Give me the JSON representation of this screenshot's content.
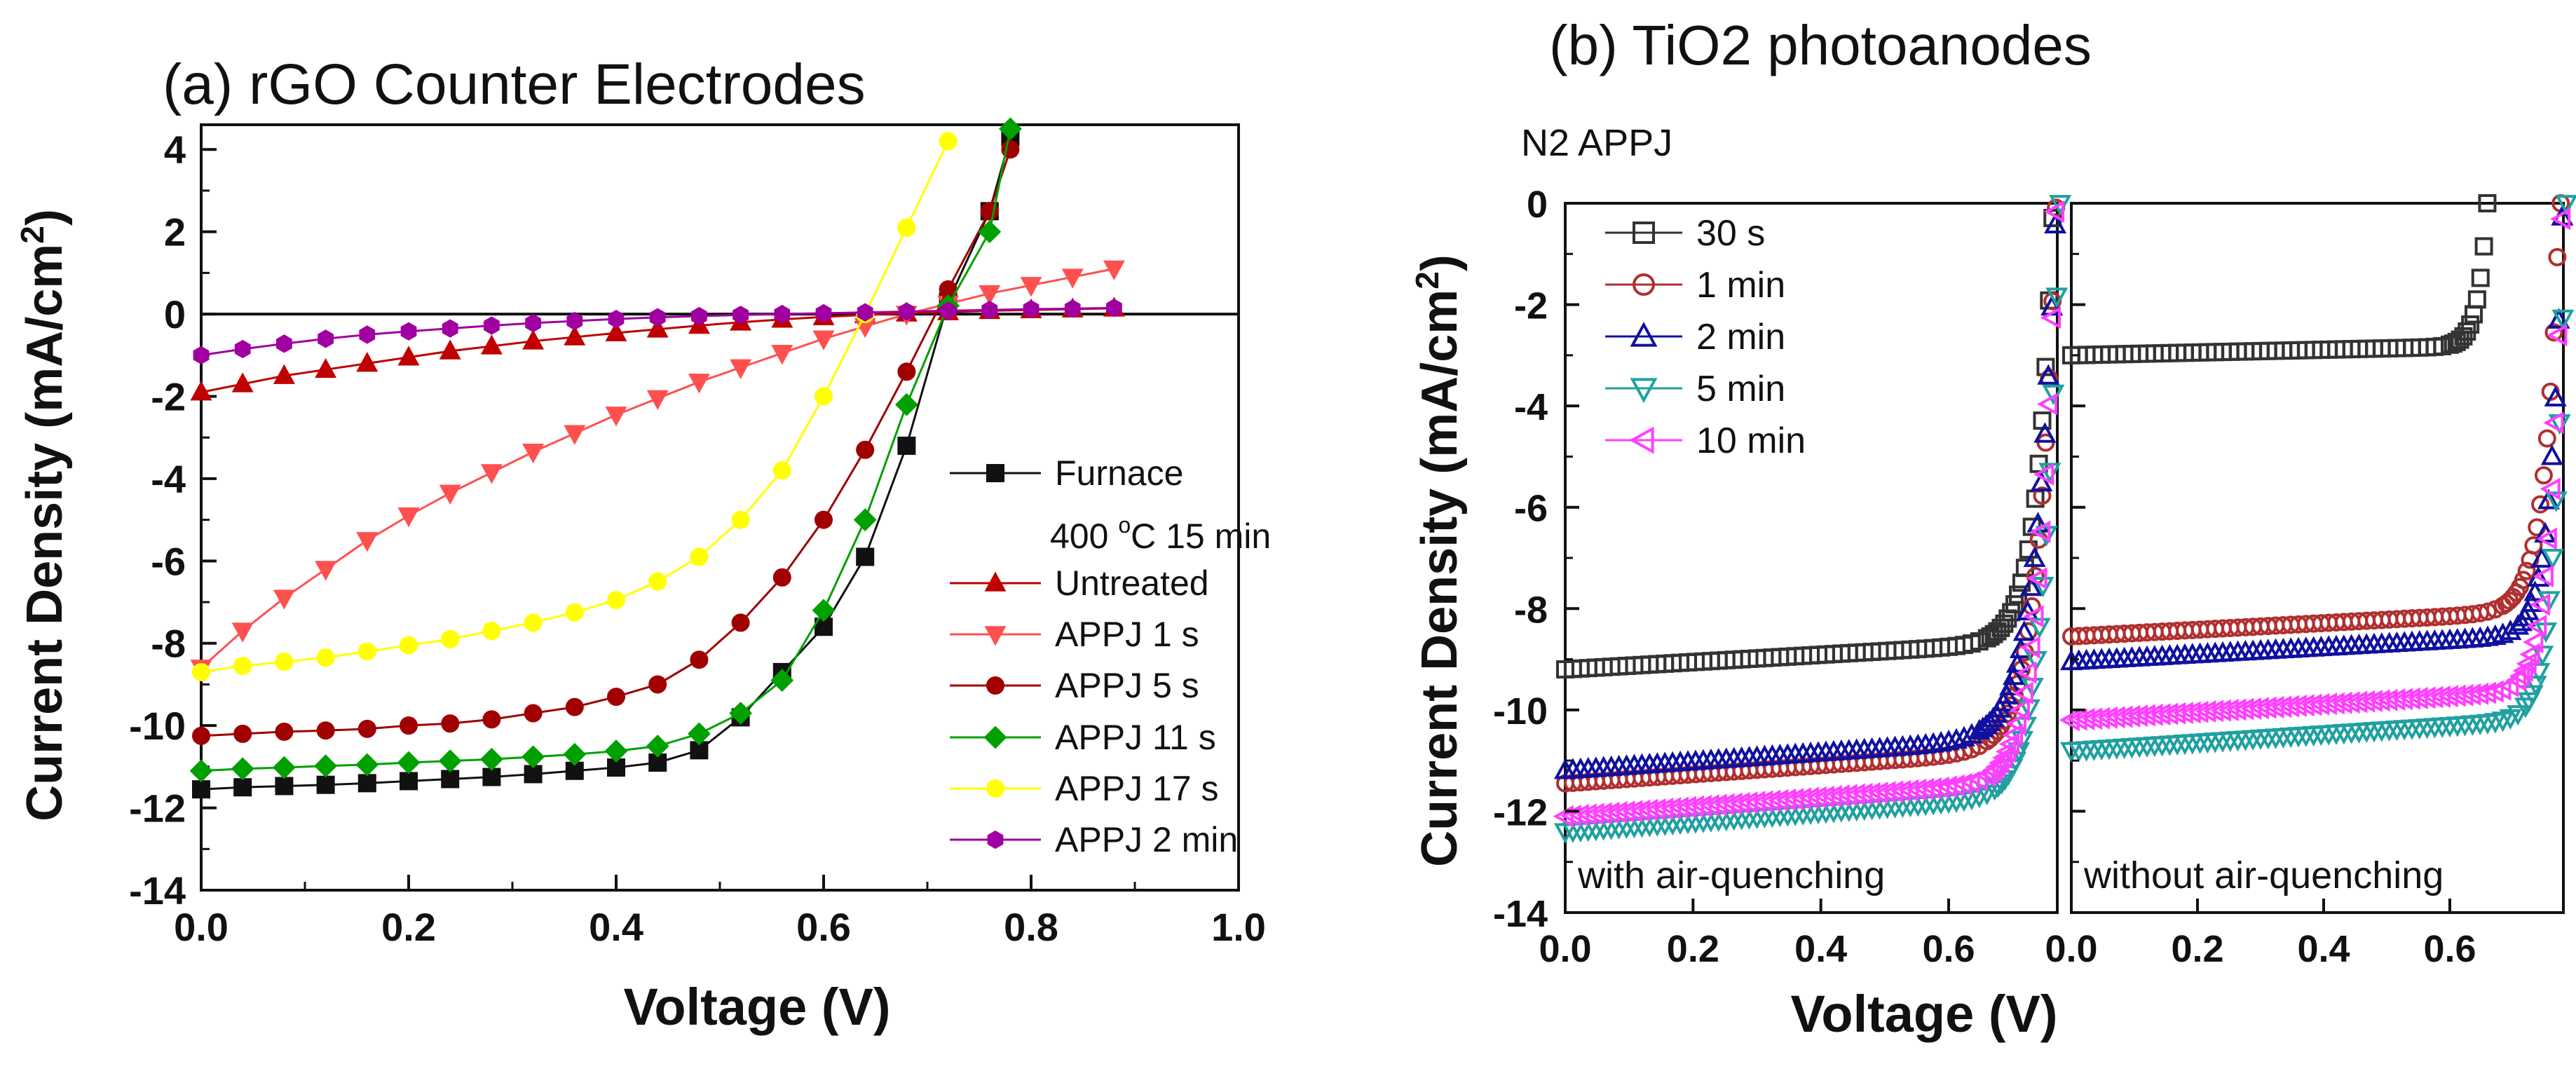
{
  "chart_data": [
    {
      "type": "line",
      "title": "(a) rGO Counter Electrodes",
      "xlabel": "Voltage (V)",
      "ylabel": "Current Density (mA/cm²)",
      "ylabel_main": "Current Density (mA/cm",
      "ylabel_sup": "2",
      "ylabel_end": ")",
      "xlim": [
        0.0,
        1.0
      ],
      "ylim": [
        -14,
        4.6
      ],
      "xticks": [
        "0.0",
        "0.2",
        "0.4",
        "0.6",
        "0.8",
        "1.0"
      ],
      "xtick_values": [
        0.0,
        0.2,
        0.4,
        0.6,
        0.8,
        1.0
      ],
      "yticks": [
        "4",
        "2",
        "0",
        "-2",
        "-4",
        "-6",
        "-8",
        "-10",
        "-12",
        "-14"
      ],
      "ytick_values": [
        4,
        2,
        0,
        -2,
        -4,
        -6,
        -8,
        -10,
        -12,
        -14
      ],
      "legend_note": "400 °C 15 min",
      "legend_note_parts": {
        "pre": "400 ",
        "sup": "o",
        "post": "C 15 min"
      },
      "series": [
        {
          "name": "Furnace",
          "color": "#111111",
          "marker": "square",
          "x": [
            0,
            0.04,
            0.08,
            0.12,
            0.16,
            0.2,
            0.24,
            0.28,
            0.32,
            0.36,
            0.4,
            0.44,
            0.48,
            0.52,
            0.56,
            0.6,
            0.64,
            0.68,
            0.72,
            0.76,
            0.78
          ],
          "y": [
            -11.55,
            -11.5,
            -11.47,
            -11.44,
            -11.4,
            -11.35,
            -11.3,
            -11.25,
            -11.18,
            -11.1,
            -11.02,
            -10.9,
            -10.6,
            -9.8,
            -8.7,
            -7.6,
            -5.9,
            -3.2,
            0.3,
            2.5,
            4.3
          ]
        },
        {
          "name": "Untreated",
          "color": "#c00000",
          "marker": "triangle-up",
          "x": [
            0,
            0.04,
            0.08,
            0.12,
            0.16,
            0.2,
            0.24,
            0.28,
            0.32,
            0.36,
            0.4,
            0.44,
            0.48,
            0.52,
            0.56,
            0.6,
            0.64,
            0.68,
            0.72,
            0.76,
            0.8,
            0.84,
            0.88
          ],
          "y": [
            -1.9,
            -1.7,
            -1.5,
            -1.35,
            -1.2,
            -1.05,
            -0.9,
            -0.78,
            -0.66,
            -0.56,
            -0.46,
            -0.37,
            -0.28,
            -0.2,
            -0.13,
            -0.07,
            -0.02,
            0.02,
            0.05,
            0.08,
            0.1,
            0.12,
            0.14
          ]
        },
        {
          "name": "APPJ   1 s",
          "color": "#ff5050",
          "marker": "triangle-down",
          "x": [
            0,
            0.04,
            0.08,
            0.12,
            0.16,
            0.2,
            0.24,
            0.28,
            0.32,
            0.36,
            0.4,
            0.44,
            0.48,
            0.52,
            0.56,
            0.6,
            0.64,
            0.68,
            0.72,
            0.76,
            0.8,
            0.84,
            0.88
          ],
          "y": [
            -8.6,
            -7.7,
            -6.9,
            -6.2,
            -5.5,
            -4.9,
            -4.35,
            -3.85,
            -3.35,
            -2.9,
            -2.45,
            -2.05,
            -1.65,
            -1.3,
            -0.95,
            -0.6,
            -0.3,
            0.0,
            0.25,
            0.5,
            0.7,
            0.9,
            1.1
          ]
        },
        {
          "name": "APPJ   5 s",
          "color": "#a00000",
          "marker": "circle",
          "x": [
            0,
            0.04,
            0.08,
            0.12,
            0.16,
            0.2,
            0.24,
            0.28,
            0.32,
            0.36,
            0.4,
            0.44,
            0.48,
            0.52,
            0.56,
            0.6,
            0.64,
            0.68,
            0.72,
            0.76,
            0.78
          ],
          "y": [
            -10.25,
            -10.2,
            -10.15,
            -10.12,
            -10.08,
            -10.0,
            -9.95,
            -9.85,
            -9.7,
            -9.55,
            -9.3,
            -9.0,
            -8.4,
            -7.5,
            -6.4,
            -5.0,
            -3.3,
            -1.4,
            0.6,
            2.5,
            4.0
          ]
        },
        {
          "name": "APPJ 11 s",
          "color": "#00a000",
          "marker": "diamond",
          "x": [
            0,
            0.04,
            0.08,
            0.12,
            0.16,
            0.2,
            0.24,
            0.28,
            0.32,
            0.36,
            0.4,
            0.44,
            0.48,
            0.52,
            0.56,
            0.6,
            0.64,
            0.68,
            0.72,
            0.76,
            0.78
          ],
          "y": [
            -11.1,
            -11.05,
            -11.02,
            -10.98,
            -10.95,
            -10.9,
            -10.86,
            -10.82,
            -10.76,
            -10.7,
            -10.62,
            -10.5,
            -10.2,
            -9.7,
            -8.9,
            -7.2,
            -5.0,
            -2.2,
            0.2,
            2.0,
            4.5
          ]
        },
        {
          "name": "APPJ 17 s",
          "color": "#ffff00",
          "marker": "circle",
          "x": [
            0,
            0.04,
            0.08,
            0.12,
            0.16,
            0.2,
            0.24,
            0.28,
            0.32,
            0.36,
            0.4,
            0.44,
            0.48,
            0.52,
            0.56,
            0.6,
            0.64,
            0.68,
            0.72
          ],
          "y": [
            -8.7,
            -8.55,
            -8.45,
            -8.35,
            -8.2,
            -8.05,
            -7.9,
            -7.7,
            -7.5,
            -7.25,
            -6.95,
            -6.5,
            -5.9,
            -5.0,
            -3.8,
            -2.0,
            0.0,
            2.1,
            4.2
          ]
        },
        {
          "name": "APPJ 2 min",
          "color": "#a000a0",
          "marker": "hexagon",
          "x": [
            0,
            0.04,
            0.08,
            0.12,
            0.16,
            0.2,
            0.24,
            0.28,
            0.32,
            0.36,
            0.4,
            0.44,
            0.48,
            0.52,
            0.56,
            0.6,
            0.64,
            0.68,
            0.72,
            0.76,
            0.8,
            0.84,
            0.88
          ],
          "y": [
            -1.0,
            -0.85,
            -0.72,
            -0.6,
            -0.5,
            -0.42,
            -0.35,
            -0.28,
            -0.22,
            -0.17,
            -0.12,
            -0.08,
            -0.05,
            -0.02,
            0.0,
            0.02,
            0.04,
            0.06,
            0.08,
            0.1,
            0.12,
            0.13,
            0.15
          ]
        }
      ]
    },
    {
      "type": "line",
      "title": "(b) TiO2  photoanodes",
      "annotation": "N2 APPJ",
      "xlabel": "Voltage (V)",
      "ylabel": "Current Density (mA/cm²)",
      "ylabel_main": "Current Density (mA/cm",
      "ylabel_sup": "2",
      "ylabel_end": ")",
      "ylim": [
        -14,
        0
      ],
      "yticks": [
        "0",
        "-2",
        "-4",
        "-6",
        "-8",
        "-10",
        "-12",
        "-14"
      ],
      "ytick_values": [
        0,
        -2,
        -4,
        -6,
        -8,
        -10,
        -12,
        -14
      ],
      "panels": [
        {
          "label": "with air-quenching",
          "xlim": [
            0.0,
            0.77
          ],
          "xticks": [
            "0.0",
            "0.2",
            "0.4",
            "0.6"
          ],
          "xtick_values": [
            0.0,
            0.2,
            0.4,
            0.6
          ],
          "series": [
            {
              "name": "30 s",
              "color": "#333333",
              "marker": "open-square",
              "jsc": -9.2,
              "voc": 0.765,
              "knee": 0.66
            },
            {
              "name": "1 min",
              "color": "#b03030",
              "marker": "open-circle",
              "jsc": -11.45,
              "voc": 0.77,
              "knee": 0.65
            },
            {
              "name": "2 min",
              "color": "#1010a0",
              "marker": "open-triangle-up",
              "jsc": -11.2,
              "voc": 0.77,
              "knee": 0.64
            },
            {
              "name": "5 min",
              "color": "#20a0a0",
              "marker": "open-triangle-down",
              "jsc": -12.4,
              "voc": 0.775,
              "knee": 0.67
            },
            {
              "name": "10 min",
              "color": "#ff40ff",
              "marker": "open-triangle-left",
              "jsc": -12.1,
              "voc": 0.77,
              "knee": 0.66
            }
          ]
        },
        {
          "label": "without air-quenching",
          "xlim": [
            0.0,
            0.78
          ],
          "xticks": [
            "0.0",
            "0.2",
            "0.4",
            "0.6"
          ],
          "xtick_values": [
            0.0,
            0.2,
            0.4,
            0.6
          ],
          "series": [
            {
              "name": "30 s",
              "color": "#333333",
              "marker": "open-square",
              "jsc": -3.0,
              "voc": 0.66,
              "knee": 0.6
            },
            {
              "name": "1 min",
              "color": "#b03030",
              "marker": "open-circle",
              "jsc": -8.55,
              "voc": 0.775,
              "knee": 0.68
            },
            {
              "name": "2 min",
              "color": "#1010a0",
              "marker": "open-triangle-up",
              "jsc": -9.05,
              "voc": 0.78,
              "knee": 0.7
            },
            {
              "name": "5 min",
              "color": "#20a0a0",
              "marker": "open-triangle-down",
              "jsc": -10.8,
              "voc": 0.785,
              "knee": 0.71
            },
            {
              "name": "10 min",
              "color": "#ff40ff",
              "marker": "open-triangle-left",
              "jsc": -10.2,
              "voc": 0.78,
              "knee": 0.7
            }
          ]
        }
      ],
      "legend": [
        "30 s",
        "1 min",
        "2 min",
        "5 min",
        "10 min"
      ]
    }
  ]
}
